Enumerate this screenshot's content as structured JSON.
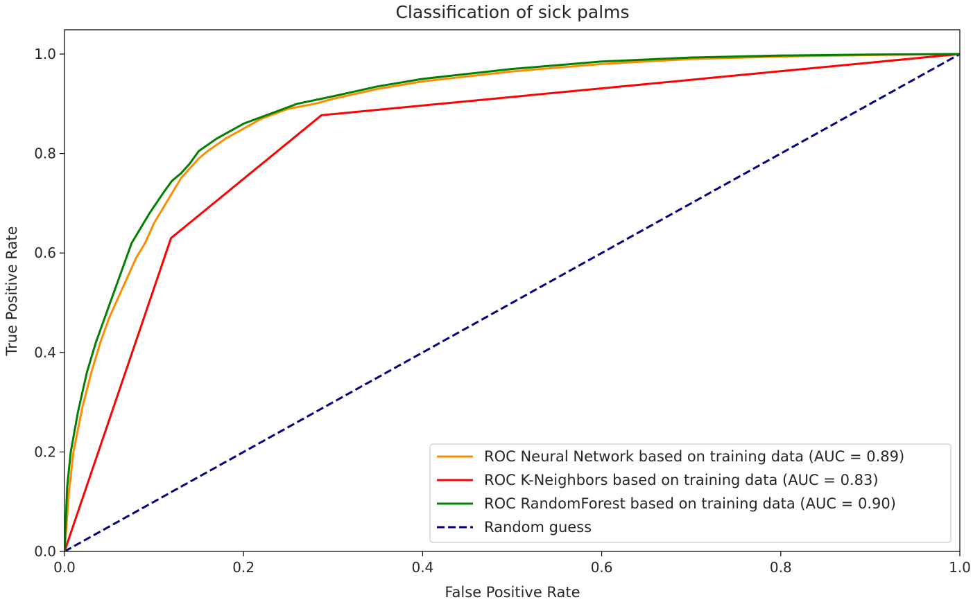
{
  "chart_data": {
    "type": "line",
    "title": "Classification of sick palms",
    "xlabel": "False Positive Rate",
    "ylabel": "True Positive Rate",
    "xlim": [
      0.0,
      1.0
    ],
    "ylim": [
      0.0,
      1.05
    ],
    "xticks": [
      "0.0",
      "0.2",
      "0.4",
      "0.6",
      "0.8",
      "1.0"
    ],
    "yticks": [
      "0.0",
      "0.2",
      "0.4",
      "0.6",
      "0.8",
      "1.0"
    ],
    "grid": false,
    "legend_position": "lower-right",
    "series": [
      {
        "name": "ROC Neural Network based on training data (AUC = 0.89)",
        "color": "#ff8c00",
        "dash": "solid",
        "x": [
          0.0,
          0.005,
          0.01,
          0.02,
          0.03,
          0.04,
          0.05,
          0.06,
          0.07,
          0.08,
          0.09,
          0.1,
          0.11,
          0.12,
          0.13,
          0.14,
          0.15,
          0.16,
          0.18,
          0.2,
          0.22,
          0.25,
          0.28,
          0.3,
          0.35,
          0.4,
          0.5,
          0.6,
          0.7,
          0.8,
          0.9,
          1.0
        ],
        "y": [
          0.0,
          0.12,
          0.2,
          0.29,
          0.36,
          0.42,
          0.47,
          0.51,
          0.55,
          0.59,
          0.62,
          0.66,
          0.69,
          0.72,
          0.75,
          0.77,
          0.79,
          0.805,
          0.83,
          0.85,
          0.87,
          0.89,
          0.9,
          0.91,
          0.93,
          0.945,
          0.965,
          0.98,
          0.99,
          0.995,
          0.998,
          1.0
        ]
      },
      {
        "name": "ROC K-Neighbors based on training data (AUC = 0.83)",
        "color": "#ff0000",
        "dash": "solid",
        "x": [
          0.0,
          0.119,
          0.287,
          1.0
        ],
        "y": [
          0.0,
          0.63,
          0.877,
          1.0
        ]
      },
      {
        "name": "ROC RandomForest based on training data (AUC = 0.90)",
        "color": "#008000",
        "dash": "solid",
        "x": [
          0.0,
          0.003,
          0.007,
          0.015,
          0.025,
          0.035,
          0.045,
          0.055,
          0.065,
          0.075,
          0.085,
          0.095,
          0.11,
          0.12,
          0.13,
          0.14,
          0.15,
          0.17,
          0.2,
          0.23,
          0.26,
          0.3,
          0.35,
          0.4,
          0.5,
          0.6,
          0.7,
          0.8,
          0.9,
          1.0
        ],
        "y": [
          0.0,
          0.13,
          0.2,
          0.28,
          0.36,
          0.42,
          0.47,
          0.52,
          0.57,
          0.62,
          0.65,
          0.68,
          0.72,
          0.745,
          0.76,
          0.78,
          0.805,
          0.83,
          0.86,
          0.88,
          0.9,
          0.915,
          0.935,
          0.95,
          0.97,
          0.985,
          0.993,
          0.997,
          0.999,
          1.0
        ]
      },
      {
        "name": "Random guess",
        "color": "#000080",
        "dash": "dashed",
        "x": [
          0.0,
          1.0
        ],
        "y": [
          0.0,
          1.0
        ]
      }
    ]
  }
}
